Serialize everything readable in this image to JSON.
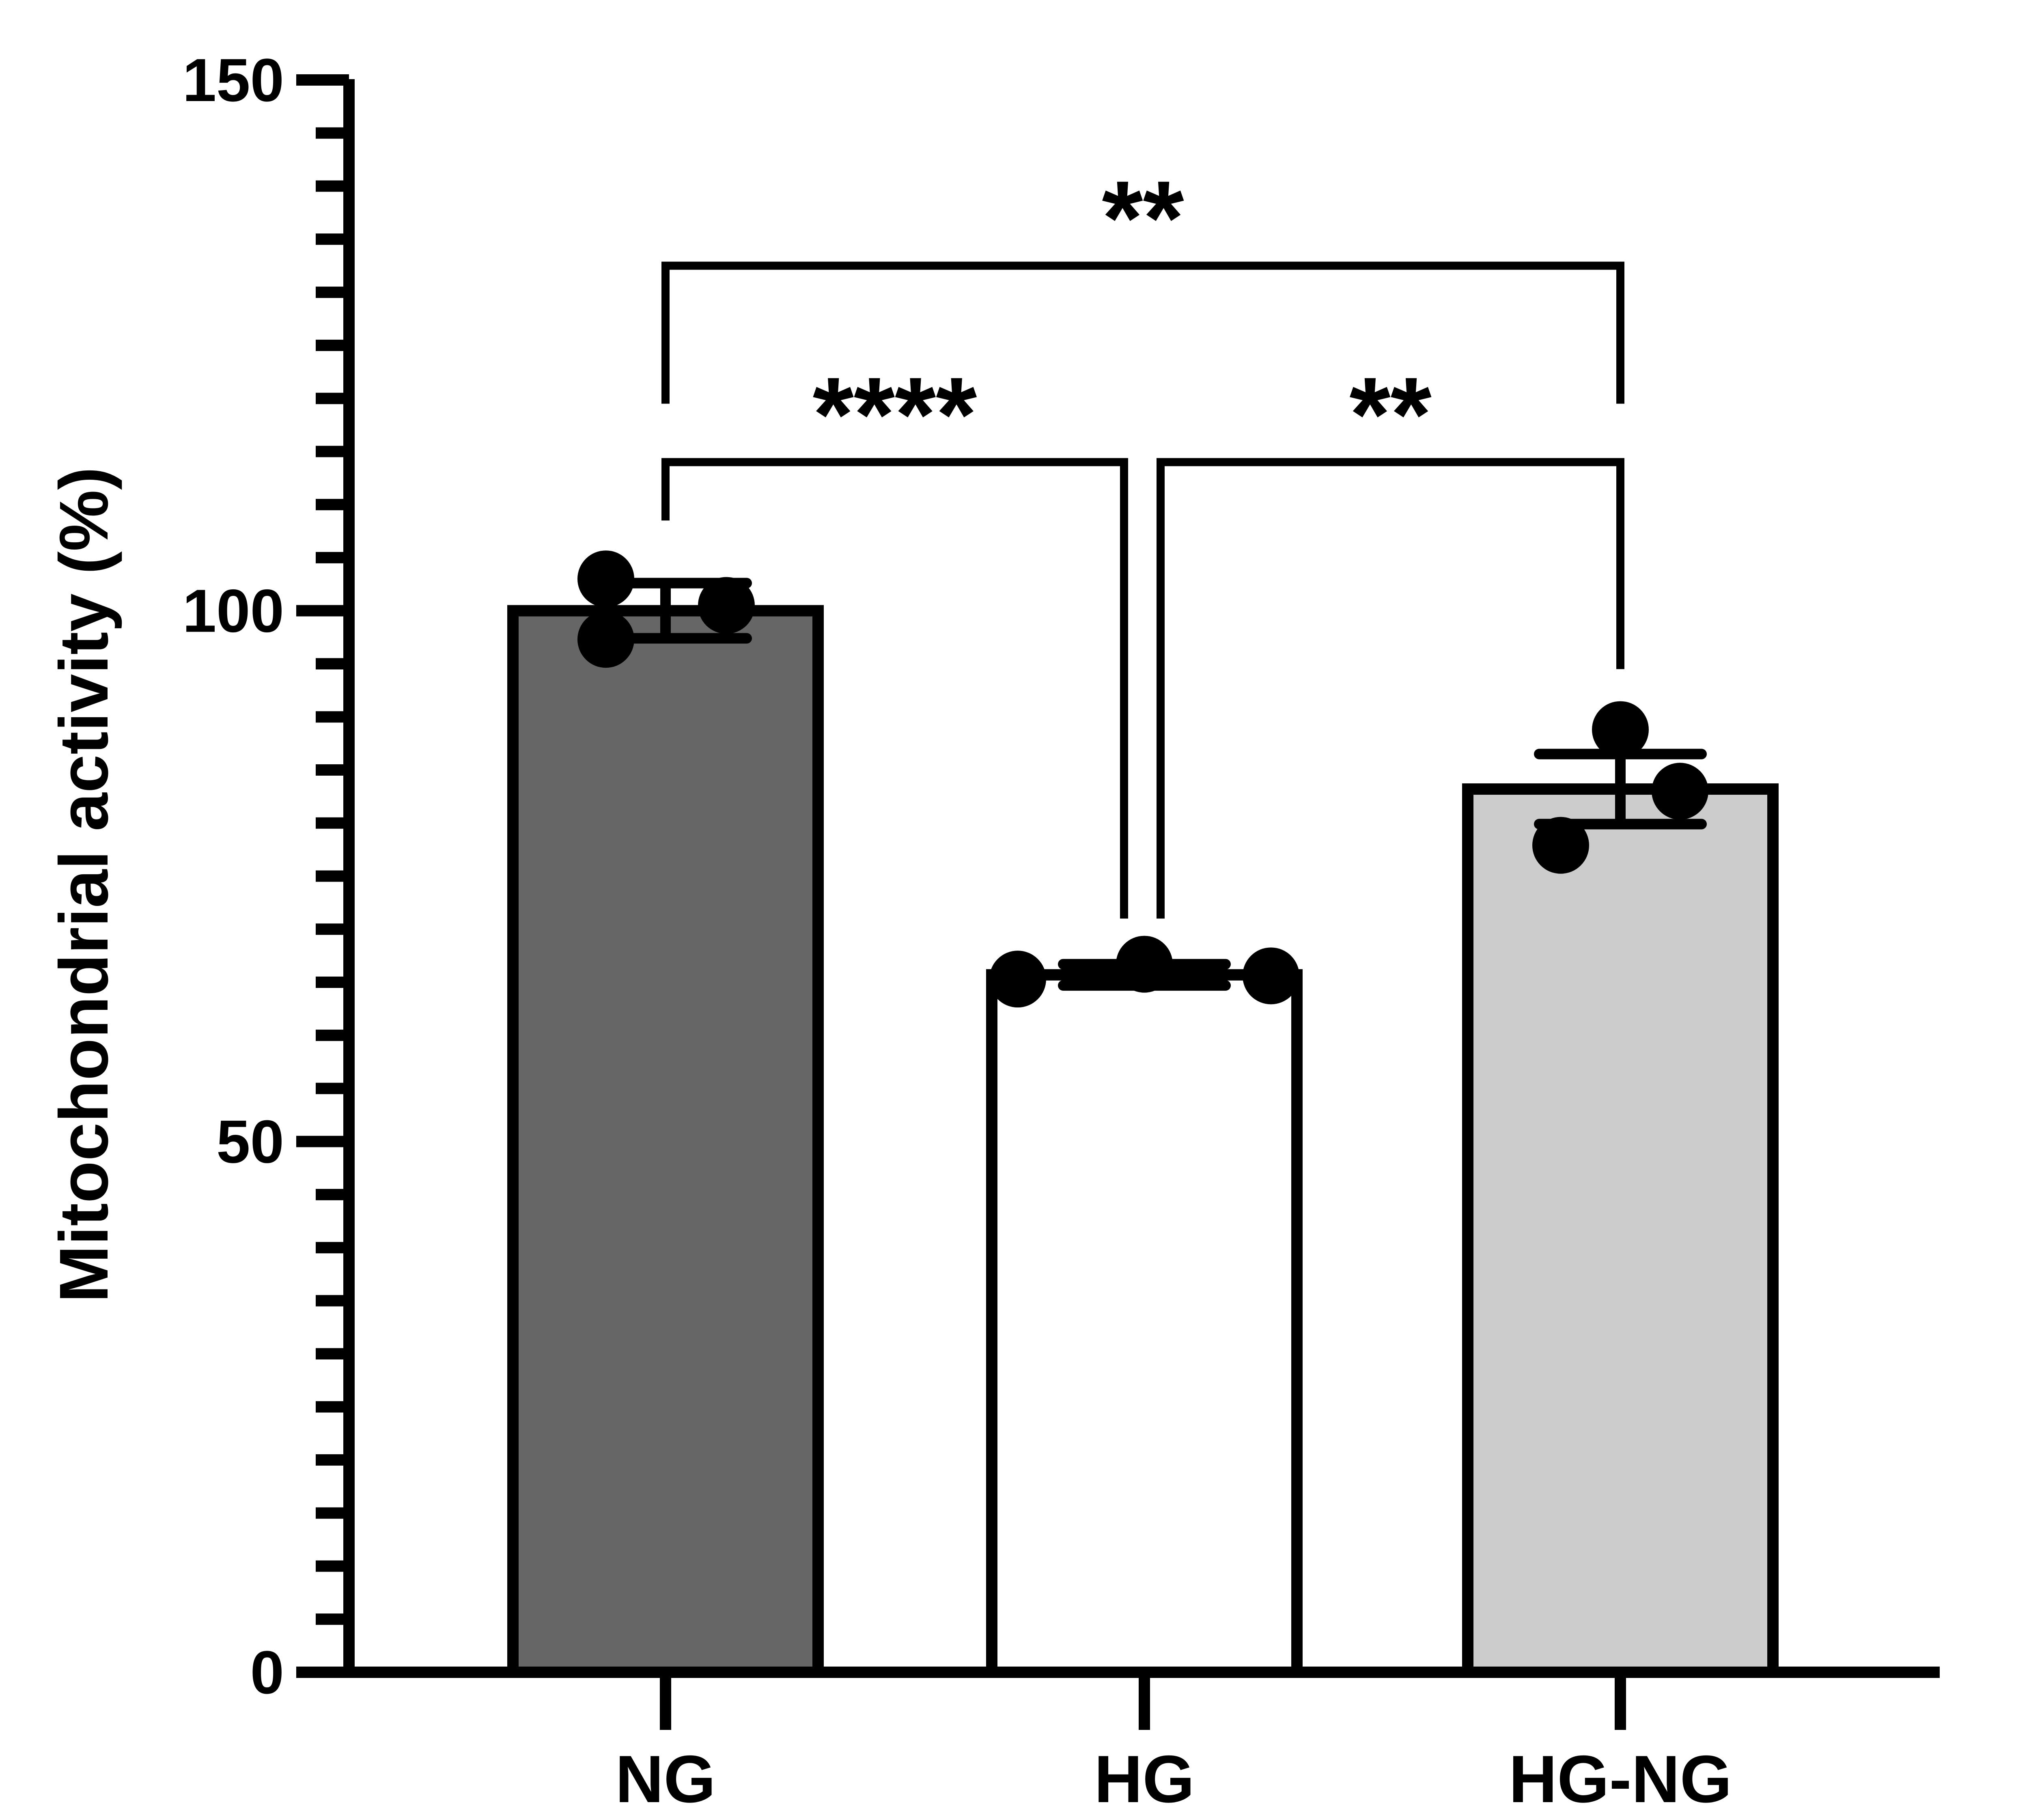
{
  "chart_data": {
    "type": "bar",
    "title": "",
    "xlabel": "",
    "ylabel": "Mitochondrial activity (%)",
    "ylim": [
      0,
      150
    ],
    "major_ticks": [
      0,
      50,
      100,
      150
    ],
    "major_tick_labels": [
      "0",
      "50",
      "100",
      "150"
    ],
    "minor_tick_step": 5,
    "categories": [
      "NG",
      "HG",
      "HG-NG"
    ],
    "values": [
      100.0,
      65.7,
      83.2
    ],
    "error_plus_minus": [
      2.6,
      1.0,
      3.3
    ],
    "points": [
      [
        103.0,
        97.3,
        100.5
      ],
      [
        65.3,
        66.7,
        65.6
      ],
      [
        88.8,
        83.0,
        77.9
      ]
    ],
    "bar_colors": [
      "#666666",
      "#ffffff",
      "#cccccc"
    ],
    "edge_color": "#000000",
    "significance": [
      {
        "from": 0,
        "to": 2,
        "label": "**",
        "bracket_y": 132.5,
        "left_end": 119.5,
        "right_end": 119.5
      },
      {
        "from": 0,
        "to": 1,
        "label": "****",
        "bracket_y": 114.0,
        "left_end": 108.5,
        "right_end": 71.0
      },
      {
        "from": 1,
        "to": 2,
        "label": "**",
        "bracket_y": 114.0,
        "left_end": 71.0,
        "right_end": 94.5
      }
    ]
  }
}
